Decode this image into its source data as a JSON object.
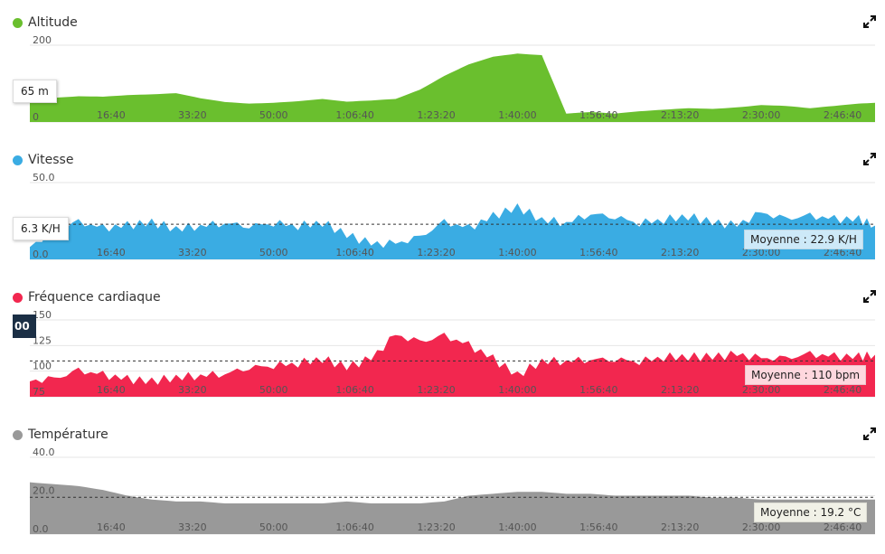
{
  "chart_data": [
    {
      "type": "area",
      "title": "Altitude",
      "color": "#6abf2e",
      "x_ticks": [
        "16:40",
        "33:20",
        "50:00",
        "1:06:40",
        "1:23:20",
        "1:40:00",
        "1:56:40",
        "2:13:20",
        "2:30:00",
        "2:46:40"
      ],
      "x_seconds_range": [
        0,
        10400
      ],
      "ylim": [
        0,
        200
      ],
      "y_ticks": [
        {
          "v": 200,
          "label": "200"
        },
        {
          "v": 0,
          "label": "0"
        }
      ],
      "tooltip": "65 m",
      "average_label": "",
      "average_value": null,
      "series": [
        {
          "x": [
            0,
            300,
            600,
            900,
            1200,
            1500,
            1800,
            2100,
            2400,
            2700,
            3000,
            3300,
            3600,
            3900,
            4200,
            4500,
            4800,
            5100,
            5400,
            5700,
            6000,
            6300,
            6600,
            6900,
            7200,
            7500,
            7800,
            8100,
            8400,
            8700,
            9000,
            9300,
            9600,
            9900,
            10200,
            10400
          ],
          "y": [
            60,
            63,
            67,
            66,
            70,
            72,
            75,
            62,
            52,
            48,
            50,
            54,
            60,
            53,
            56,
            60,
            84,
            120,
            150,
            170,
            178,
            174,
            22,
            26,
            22,
            28,
            32,
            36,
            34,
            38,
            44,
            42,
            36,
            42,
            48,
            50
          ]
        }
      ]
    },
    {
      "type": "area",
      "title": "Vitesse",
      "color": "#3aace3",
      "x_ticks": [
        "16:40",
        "33:20",
        "50:00",
        "1:06:40",
        "1:23:20",
        "1:40:00",
        "1:56:40",
        "2:13:20",
        "2:30:00",
        "2:46:40"
      ],
      "x_seconds_range": [
        0,
        10400
      ],
      "ylim": [
        0,
        50
      ],
      "y_ticks": [
        {
          "v": 50,
          "label": "50.0"
        },
        {
          "v": 0,
          "label": "0.0"
        }
      ],
      "tooltip": "6.3 K/H",
      "average_label": "Moyenne : 22.9 K/H",
      "average_value": 22.9,
      "series": [
        {
          "x": [
            0,
            300,
            600,
            900,
            1200,
            1500,
            1800,
            2100,
            2400,
            2700,
            3000,
            3300,
            3600,
            3900,
            4200,
            4500,
            4800,
            5100,
            5400,
            5700,
            6000,
            6300,
            6600,
            6900,
            7200,
            7500,
            7800,
            8100,
            8400,
            8700,
            9000,
            9300,
            9600,
            9900,
            10200,
            10400
          ],
          "y": [
            8,
            18,
            24,
            20,
            22,
            24,
            20,
            22,
            24,
            22,
            24,
            22,
            24,
            16,
            10,
            10,
            14,
            24,
            20,
            28,
            34,
            26,
            24,
            30,
            28,
            24,
            26,
            28,
            24,
            22,
            30,
            26,
            28,
            26,
            26,
            22
          ]
        }
      ]
    },
    {
      "type": "area",
      "title": "Fréquence cardiaque",
      "color": "#f2274f",
      "x_ticks": [
        "16:40",
        "33:20",
        "50:00",
        "1:06:40",
        "1:23:20",
        "1:40:00",
        "1:56:40",
        "2:13:20",
        "2:30:00",
        "2:46:40"
      ],
      "x_seconds_range": [
        0,
        10400
      ],
      "ylim": [
        75,
        150
      ],
      "y_ticks": [
        {
          "v": 150,
          "label": "150"
        },
        {
          "v": 125,
          "label": "125"
        },
        {
          "v": 100,
          "label": "100"
        },
        {
          "v": 75,
          "label": "75"
        }
      ],
      "tooltip": "00",
      "average_label": "Moyenne : 110 bpm",
      "average_value": 110,
      "series": [
        {
          "x": [
            0,
            300,
            600,
            900,
            1200,
            1500,
            1800,
            2100,
            2400,
            2700,
            3000,
            3300,
            3600,
            3900,
            4200,
            4500,
            4800,
            5100,
            5400,
            5700,
            6000,
            6300,
            6600,
            6900,
            7200,
            7500,
            7800,
            8100,
            8400,
            8700,
            9000,
            9300,
            9600,
            9900,
            10200,
            10400
          ],
          "y": [
            90,
            92,
            100,
            96,
            92,
            90,
            94,
            96,
            98,
            104,
            106,
            108,
            112,
            104,
            112,
            135,
            128,
            134,
            125,
            112,
            96,
            110,
            110,
            112,
            112,
            110,
            114,
            114,
            114,
            116,
            112,
            112,
            116,
            114,
            114,
            116
          ]
        }
      ]
    },
    {
      "type": "area",
      "title": "Température",
      "color": "#999999",
      "x_ticks": [
        "16:40",
        "33:20",
        "50:00",
        "1:06:40",
        "1:23:20",
        "1:40:00",
        "1:56:40",
        "2:13:20",
        "2:30:00",
        "2:46:40"
      ],
      "x_seconds_range": [
        0,
        10400
      ],
      "ylim": [
        0,
        40
      ],
      "y_ticks": [
        {
          "v": 40,
          "label": "40.0"
        },
        {
          "v": 20,
          "label": "20.0"
        },
        {
          "v": 0,
          "label": "0.0"
        }
      ],
      "tooltip": "",
      "average_label": "Moyenne : 19.2 °C",
      "average_value": 19.2,
      "series": [
        {
          "x": [
            0,
            300,
            600,
            900,
            1200,
            1500,
            1800,
            2100,
            2400,
            2700,
            3000,
            3300,
            3600,
            3900,
            4200,
            4500,
            4800,
            5100,
            5400,
            5700,
            6000,
            6300,
            6600,
            6900,
            7200,
            7500,
            7800,
            8100,
            8400,
            8700,
            9000,
            9300,
            9600,
            9900,
            10200,
            10400
          ],
          "y": [
            27,
            26,
            25,
            23,
            20,
            18,
            17,
            17,
            16,
            16,
            16,
            16,
            16,
            17,
            16,
            16,
            16,
            17,
            20,
            21,
            22,
            22,
            21,
            21,
            20,
            20,
            20,
            20,
            19,
            19,
            18,
            18,
            18,
            18,
            18,
            18
          ]
        }
      ]
    }
  ]
}
